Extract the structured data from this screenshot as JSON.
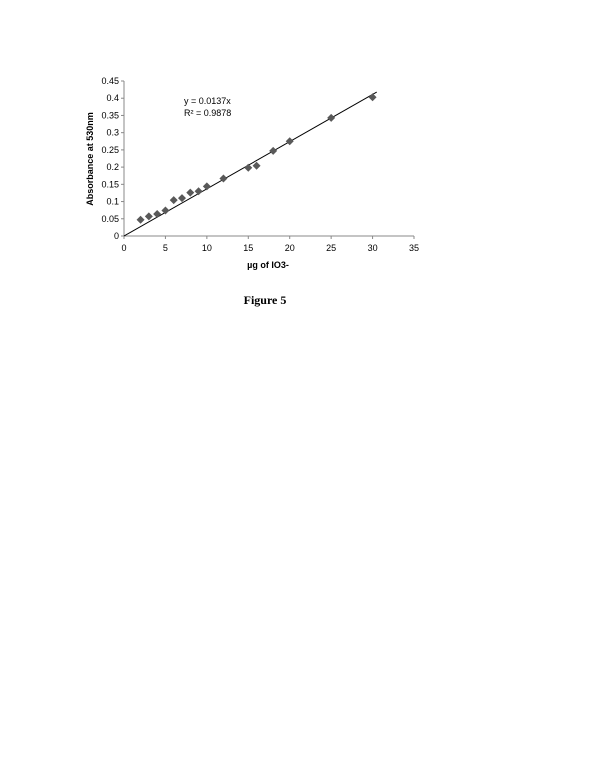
{
  "figure_caption": "Figure 5",
  "chart_data": {
    "type": "scatter",
    "xlabel": "µg of IO3-",
    "ylabel": "Absorbance at 530nm",
    "xlim": [
      0,
      35
    ],
    "ylim": [
      0,
      0.45
    ],
    "x_ticks": [
      0,
      5,
      10,
      15,
      20,
      25,
      30,
      35
    ],
    "y_ticks": [
      0,
      0.05,
      0.1,
      0.15,
      0.2,
      0.25,
      0.3,
      0.35,
      0.4,
      0.45
    ],
    "grid": false,
    "marker": "diamond",
    "marker_color": "#595959",
    "series": [
      {
        "x": [
          2,
          3,
          4,
          5,
          6,
          7,
          8,
          9,
          10,
          12,
          15,
          16,
          18,
          20,
          25,
          30
        ],
        "y": [
          0.047,
          0.057,
          0.064,
          0.074,
          0.104,
          0.11,
          0.126,
          0.13,
          0.144,
          0.167,
          0.198,
          0.204,
          0.247,
          0.275,
          0.343,
          0.403
        ]
      }
    ],
    "trendline": {
      "type": "linear",
      "slope": 0.0137,
      "intercept": 0,
      "color": "#000000"
    },
    "annotations": {
      "equation": "y = 0.0137x",
      "r_squared": "R² = 0.9878"
    }
  }
}
